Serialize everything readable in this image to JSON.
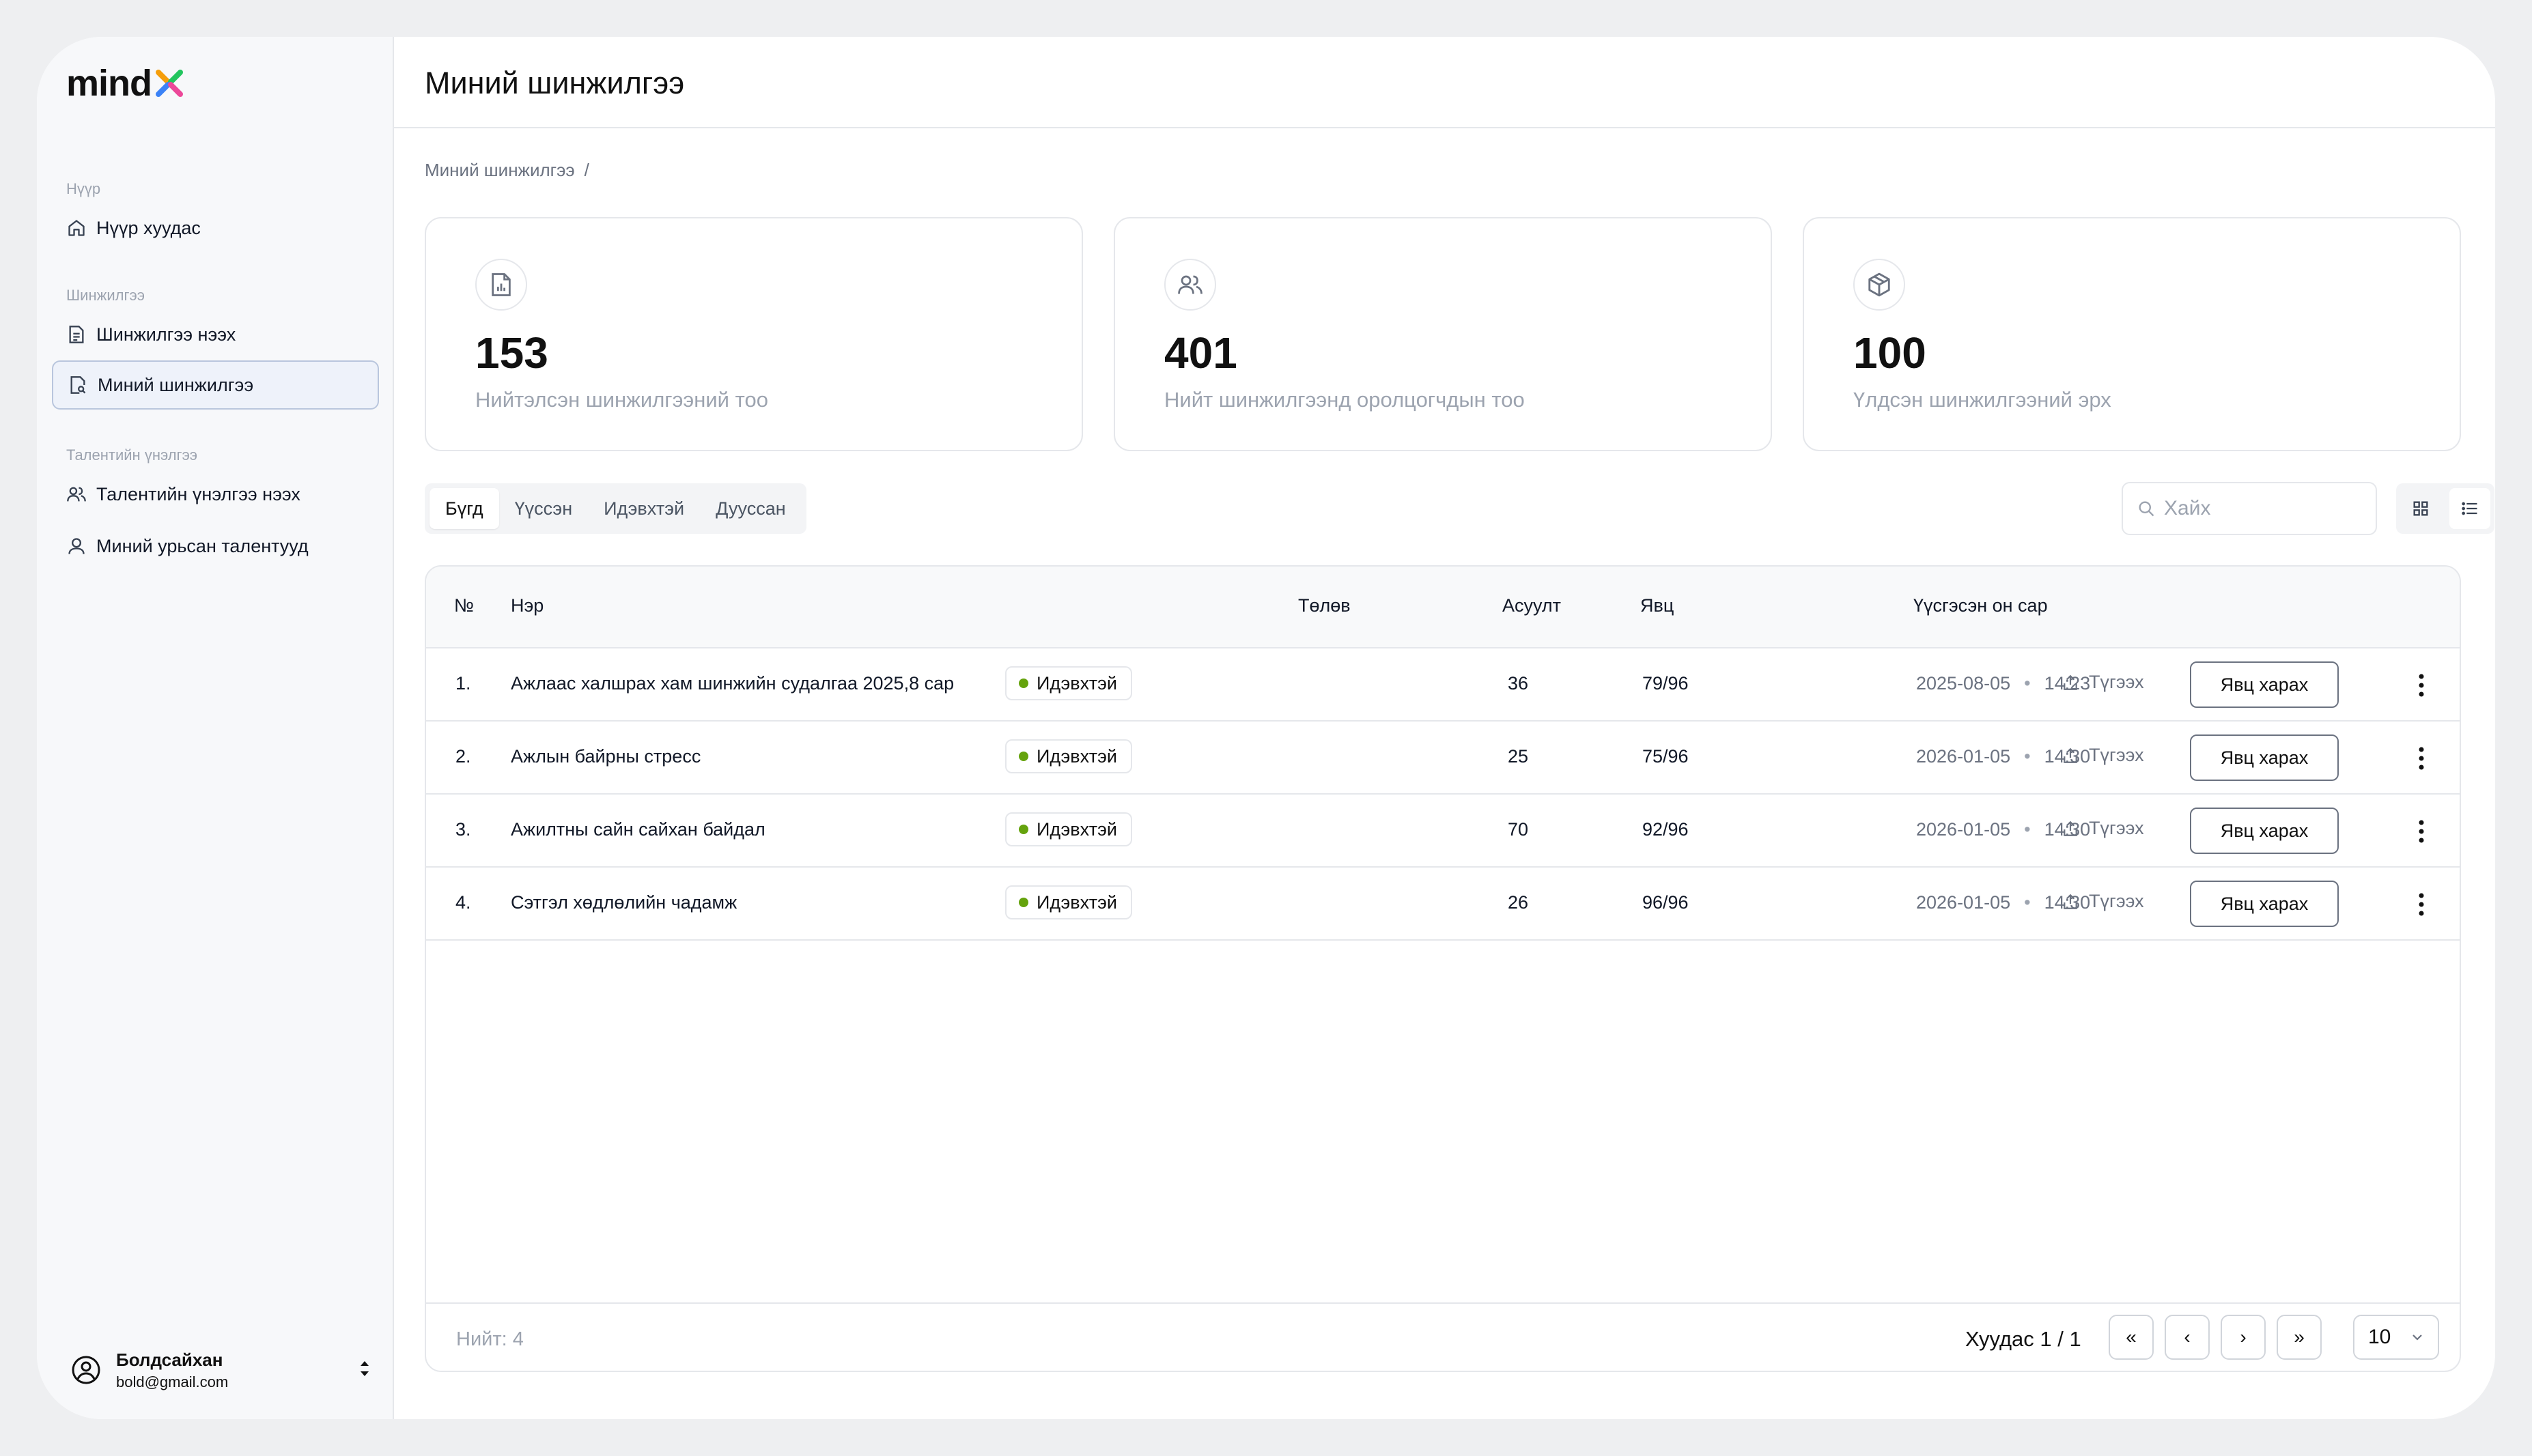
{
  "app": {
    "logo_text": "mind"
  },
  "sidebar": {
    "groups": [
      {
        "label": "Нүүр",
        "items": [
          {
            "label": "Нүүр хуудас"
          }
        ]
      },
      {
        "label": "Шинжилгээ",
        "items": [
          {
            "label": "Шинжилгээ нээх"
          },
          {
            "label": "Миний шинжилгээ"
          }
        ]
      },
      {
        "label": "Талентийн үнэлгээ",
        "items": [
          {
            "label": "Талентийн үнэлгээ нээх"
          },
          {
            "label": "Миний урьсан талентууд"
          }
        ]
      }
    ],
    "active_item": "Миний шинжилгээ",
    "user": {
      "name": "Болдсайхан",
      "email": "bold@gmail.com"
    }
  },
  "header": {
    "title": "Миний шинжилгээ"
  },
  "breadcrumb": {
    "items": [
      "Миний шинжилгээ"
    ],
    "separator": "/"
  },
  "stats": [
    {
      "value": "153",
      "label": "Нийтэлсэн шинжилгээний тоо",
      "icon": "file-chart-icon"
    },
    {
      "value": "401",
      "label": "Нийт шинжилгээнд оролцогчдын тоо",
      "icon": "users-icon"
    },
    {
      "value": "100",
      "label": "Үлдсэн шинжилгээний эрх",
      "icon": "box-icon"
    }
  ],
  "filters": {
    "tabs": [
      "Бүгд",
      "Үүссэн",
      "Идэвхтэй",
      "Дууссан"
    ],
    "active_tab": "Бүгд",
    "search_placeholder": "Хайх"
  },
  "table": {
    "columns": [
      "№",
      "Нэр",
      "Төлөв",
      "Асуулт",
      "Явц",
      "Үүсгэсэн он сар"
    ],
    "rows": [
      {
        "num": "1.",
        "name": "Ажлаас халшрах хам шинжийн судалгаа 2025,8 сар",
        "status": "Идэвхтэй",
        "questions": "36",
        "progress": "79/96",
        "date": "2025-08-05",
        "time": "14:23",
        "share": "Түгээх",
        "action": "Явц харах"
      },
      {
        "num": "2.",
        "name": "Ажлын байрны стресс",
        "status": "Идэвхтэй",
        "questions": "25",
        "progress": "75/96",
        "date": "2026-01-05",
        "time": "14:30",
        "share": "Түгээх",
        "action": "Явц харах"
      },
      {
        "num": "3.",
        "name": "Ажилтны сайн сайхан байдал",
        "status": "Идэвхтэй",
        "questions": "70",
        "progress": "92/96",
        "date": "2026-01-05",
        "time": "14:30",
        "share": "Түгээх",
        "action": "Явц харах"
      },
      {
        "num": "4.",
        "name": "Сэтгэл хөдлөлийн чадамж",
        "status": "Идэвхтэй",
        "questions": "26",
        "progress": "96/96",
        "date": "2026-01-05",
        "time": "14:30",
        "share": "Түгээх",
        "action": "Явц харах"
      }
    ],
    "separator": "•"
  },
  "footer": {
    "total": "Нийт: 4",
    "page_info": "Хуудас 1 / 1",
    "first": "«",
    "prev": "‹",
    "next": "›",
    "last": "»",
    "per_page": "10"
  },
  "colors": {
    "accent_border": "#b9c6dd",
    "status_active": "#65a30d"
  }
}
